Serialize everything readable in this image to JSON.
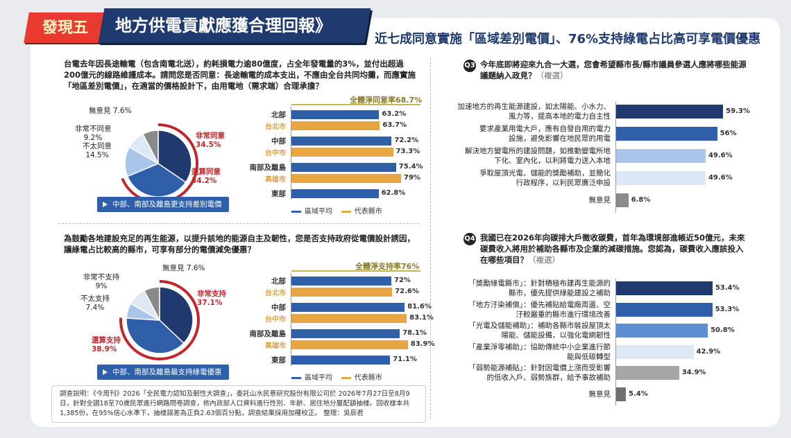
{
  "header": {
    "badge": "發現五",
    "banner": "地方供電貢獻應獲合理回報》",
    "headline": "近七成同意實施「區域差別電價」、76%支持綠電占比高可享電價優惠"
  },
  "q1": {
    "question": "台電去年因長途輸電（包含南電北送），約耗損電力逾80億度，占全年發電量的3%，並付出超過200億元的線路維護成本。請問您是否同意：長途輸電的成本支出，不應由全台共同均攤，而應實施「地區差別電價」，在適當的價格設計下，由用電地（需求端）合理承擔？",
    "summary": "全體淨同意率68.7%",
    "tag": "中部、南部及離島更支持差別電價",
    "pie_labels": {
      "neutral": "無意見 7.6%",
      "strong_no": "非常不同意",
      "strong_no_v": "9.2%",
      "no": "不太同意",
      "no_v": "14.5%",
      "strong_yes": "非常同意",
      "strong_yes_v": "34.5%",
      "yes": "還算同意",
      "yes_v": "34.2%"
    },
    "legend_avg": "區域平均",
    "legend_cty": "代表縣市"
  },
  "q2": {
    "question": "為鼓勵各地建設充足的再生能源，以提升該地的能源自主及韌性，您是否支持政府從電價設計誘因，讓綠電占比較高的縣市，可享有部分的電價減免優惠？",
    "summary": "全體淨支持率76%",
    "tag": "中部、南部及離島最支持綠電優惠",
    "pie_labels": {
      "neutral": "無意見 7.6%",
      "strong_no": "非常不支持",
      "strong_no_v": "9%",
      "no": "不太支持",
      "no_v": "7.4%",
      "strong_yes": "非常支持",
      "strong_yes_v": "37.1%",
      "yes": "還算支持",
      "yes_v": "38.9%"
    },
    "legend_avg": "區域平均",
    "legend_cty": "代表縣市"
  },
  "q3": {
    "num": "Q3",
    "question": "今年底即將迎來九合一大選，您會希望縣市長/縣市議員參選人應將哪些能源議題納入政見？",
    "multi": "（複選）"
  },
  "q4": {
    "num": "Q4",
    "question": "我國已在2026年向碳排大戶徵收碳費，首年為環境部進帳近50億元，未來碳費收入將用於補助各縣市及企業的減碳措施。您認為，碳費收入應該投入在哪些項目？",
    "multi": "（複選）"
  },
  "footnote": "調查說明：《今周刊》2026「全民電力認知及韌性大調查」，委託山水民意研究股份有限公司於 2026年7月27日至8月9日，針對全國18至70歲民眾進行網路問卷調查，依內政部人口資料進行性別、年齡、居住地分層配額抽樣。回收樣本共1,385份，在95%信心水準下，抽樣誤差為正負2.63個百分點，調查結果採用加權校正。 整理：吳辰君",
  "colors": {
    "navy": "#1f3a6e",
    "blue": "#2e5fa8",
    "mid": "#5b8fd0",
    "light": "#a9c6ea",
    "pale": "#dce8f6",
    "gray": "#8a8a8a",
    "orange": "#e8a640",
    "red": "#e63b2e"
  },
  "chart_data": [
    {
      "type": "pie",
      "title": "",
      "slices": [
        {
          "label": "非常同意",
          "value": 34.5
        },
        {
          "label": "還算同意",
          "value": 34.2
        },
        {
          "label": "不太同意",
          "value": 14.5
        },
        {
          "label": "非常不同意",
          "value": 9.2
        },
        {
          "label": "無意見",
          "value": 7.6
        }
      ]
    },
    {
      "type": "bar",
      "categories": [
        "北部",
        "台北市",
        "中部",
        "台中市",
        "南部及離島",
        "高雄市",
        "東部"
      ],
      "values": [
        63.2,
        63.7,
        72.2,
        73.3,
        75.4,
        79,
        62.8
      ],
      "labels": [
        "63.2%",
        "63.7%",
        "72.2%",
        "73.3%",
        "75.4%",
        "79%",
        "62.8%"
      ],
      "series_kind": [
        "avg",
        "cty",
        "avg",
        "cty",
        "avg",
        "cty",
        "avg"
      ],
      "legend": [
        "區域平均",
        "代表縣市"
      ]
    },
    {
      "type": "pie",
      "title": "",
      "slices": [
        {
          "label": "非常支持",
          "value": 37.1
        },
        {
          "label": "還算支持",
          "value": 38.9
        },
        {
          "label": "不太支持",
          "value": 7.4
        },
        {
          "label": "非常不支持",
          "value": 9
        },
        {
          "label": "無意見",
          "value": 7.6
        }
      ]
    },
    {
      "type": "bar",
      "categories": [
        "北部",
        "台北市",
        "中部",
        "台中市",
        "南部及離島",
        "高雄市",
        "東部"
      ],
      "values": [
        72,
        72.6,
        81.6,
        83.1,
        78.1,
        83.9,
        71.1
      ],
      "labels": [
        "72%",
        "72.6%",
        "81.6%",
        "83.1%",
        "78.1%",
        "83.9%",
        "71.1%"
      ],
      "series_kind": [
        "avg",
        "cty",
        "avg",
        "cty",
        "avg",
        "cty",
        "avg"
      ],
      "legend": [
        "區域平均",
        "代表縣市"
      ]
    },
    {
      "type": "bar",
      "orientation": "horizontal",
      "categories": [
        "加速地方的再生能源建設，如太陽能、小水力、風力等，提高本地的電力自主性",
        "要求產業用電大戶，應有自發自用的電力設施，避免影響在地民眾的用電",
        "解決地方變電所的建設問題，如推動變電所地下化、室內化，以利將電力送入本地",
        "爭取屋頂光電、儲能的獎勵補助，並簡化行政程序，以利民眾廣泛申設",
        "無意見"
      ],
      "values": [
        59.3,
        56,
        49.6,
        49.6,
        6.8
      ],
      "labels": [
        "59.3%",
        "56%",
        "49.6%",
        "49.6%",
        "6.8%"
      ]
    },
    {
      "type": "bar",
      "orientation": "horizontal",
      "categories": [
        "「獎勵綠電縣市」：針對積極布建再生能源的縣市，優先提供綠能建設之補助",
        "「地方汙染補償」：優先補貼給電廠周邊、空汙較嚴重的縣市進行環境改善",
        "「光電及儲能補助」：補助各縣市裝設屋頂太陽能、儲能設備，以強化電網韌性",
        "「產業淨零補助」：協助傳統中小企業進行節能與低碳轉型",
        "「弱勢能源補貼」：針對因電價上漲而受影響的低收入戶、弱勢族群，給予事故補助",
        "無意見"
      ],
      "values": [
        53.4,
        53.3,
        50.8,
        42.9,
        34.9,
        5.4
      ],
      "labels": [
        "53.4%",
        "53.3%",
        "50.8%",
        "42.9%",
        "34.9%",
        "5.4%"
      ]
    }
  ],
  "q3_labels": [
    "加速地方的再生能源建設，如太陽能、小水力、\n風力等，提高本地的電力自主性",
    "要求產業用電大戶，應有自發自用的電力\n設施，避免影響在地民眾的用電",
    "解決地方變電所的建設問題，如推動變電所地\n下化、室內化，以利將電力送入本地",
    "爭取屋頂光電、儲能的獎勵補助，並簡化\n行政程序，以利民眾廣泛申設",
    "無意見"
  ],
  "q4_labels": [
    "「獎勵綠電縣市」：針對積極布建再生能源的\n縣市，優先提供綠能建設之補助",
    "「地方汙染補償」：優先補貼給電廠周邊、空\n汙較嚴重的縣市進行環境改善",
    "「光電及儲能補助」：補助各縣市裝設屋頂太\n陽能、儲能設備，以強化電網韌性",
    "「產業淨零補助」：協助傳統中小企業進行節\n能與低碳轉型",
    "「弱勢能源補貼」：針對因電價上漲而受影響\n的低收入戶、弱勢族群，給予事故補助",
    "無意見"
  ]
}
